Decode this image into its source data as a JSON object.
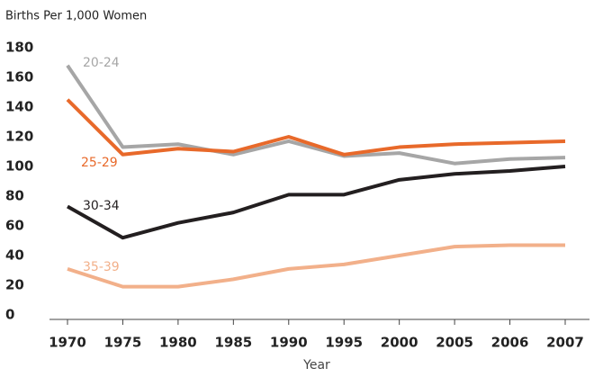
{
  "chart_data": {
    "type": "line",
    "ylabel": "Births Per 1,000 Women",
    "xlabel": "Year",
    "categories": [
      "1970",
      "1975",
      "1980",
      "1985",
      "1990",
      "1995",
      "2000",
      "2005",
      "2006",
      "2007"
    ],
    "series": [
      {
        "name": "20-24",
        "color": "#a6a6a6",
        "values": [
          168,
          113,
          115,
          108,
          117,
          107,
          109,
          102,
          105,
          106
        ]
      },
      {
        "name": "25-29",
        "color": "#e8692a",
        "values": [
          145,
          108,
          112,
          110,
          120,
          108,
          113,
          115,
          116,
          117
        ]
      },
      {
        "name": "30-34",
        "color": "#231f20",
        "values": [
          73,
          52,
          62,
          69,
          81,
          81,
          91,
          95,
          97,
          100
        ]
      },
      {
        "name": "35-39",
        "color": "#f2b08a",
        "values": [
          31,
          19,
          19,
          24,
          31,
          34,
          40,
          46,
          47,
          47
        ]
      }
    ],
    "ylim": [
      0,
      180
    ],
    "yticks": [
      0,
      20,
      40,
      60,
      80,
      100,
      120,
      140,
      160,
      180
    ],
    "grid": false
  }
}
